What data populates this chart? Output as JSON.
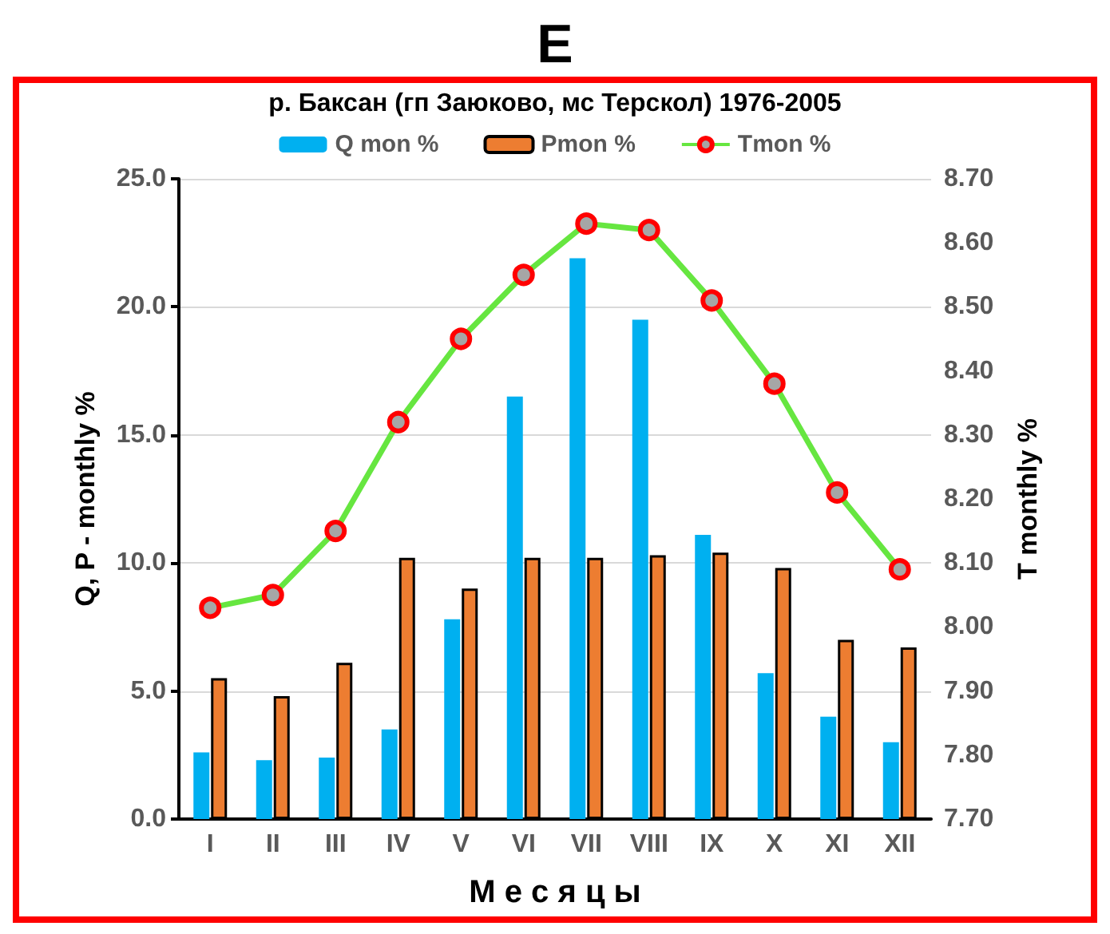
{
  "chart_data": {
    "type": "bar",
    "title": "E",
    "subtitle": "р. Баксан (гп Заюково, мс Терскол) 1976-2005",
    "xlabel": "М е с я ц ы",
    "ylabel": "Q, P - monthly %",
    "y2label": "T monthly %",
    "categories": [
      "I",
      "II",
      "III",
      "IV",
      "V",
      "VI",
      "VII",
      "VIII",
      "IX",
      "X",
      "XI",
      "XII"
    ],
    "series": [
      {
        "name": "Q mon %",
        "color": "#00b0f0",
        "values": [
          2.6,
          2.3,
          2.4,
          3.5,
          7.8,
          16.5,
          21.9,
          19.5,
          11.1,
          5.7,
          4.0,
          3.0
        ]
      },
      {
        "name": "Pmon %",
        "color": "#ed7d31",
        "values": [
          5.5,
          4.8,
          6.1,
          10.2,
          9.0,
          10.2,
          10.2,
          10.3,
          10.4,
          9.8,
          7.0,
          6.7
        ]
      },
      {
        "name": "Tmon %",
        "type": "line",
        "axis": "y2",
        "color": "#66e640",
        "marker": "circle",
        "values": [
          8.03,
          8.05,
          8.15,
          8.32,
          8.45,
          8.55,
          8.63,
          8.62,
          8.51,
          8.38,
          8.21,
          8.09
        ]
      }
    ],
    "ylim": [
      0,
      25
    ],
    "yticks": [
      {
        "value": 0,
        "label": "0.0"
      },
      {
        "value": 5,
        "label": "5.0"
      },
      {
        "value": 10,
        "label": "10.0"
      },
      {
        "value": 15,
        "label": "15.0"
      },
      {
        "value": 20,
        "label": "20.0"
      },
      {
        "value": 25,
        "label": "25.0"
      }
    ],
    "y2lim": [
      7.7,
      8.7
    ],
    "y2ticks": [
      {
        "value": 7.7,
        "label": "7.70"
      },
      {
        "value": 7.8,
        "label": "7.80"
      },
      {
        "value": 7.9,
        "label": "7.90"
      },
      {
        "value": 8.0,
        "label": "8.00"
      },
      {
        "value": 8.1,
        "label": "8.10"
      },
      {
        "value": 8.2,
        "label": "8.20"
      },
      {
        "value": 8.3,
        "label": "8.30"
      },
      {
        "value": 8.4,
        "label": "8.40"
      },
      {
        "value": 8.5,
        "label": "8.50"
      },
      {
        "value": 8.6,
        "label": "8.60"
      },
      {
        "value": 8.7,
        "label": "8.70"
      }
    ],
    "grid": "y",
    "legend": "top"
  }
}
